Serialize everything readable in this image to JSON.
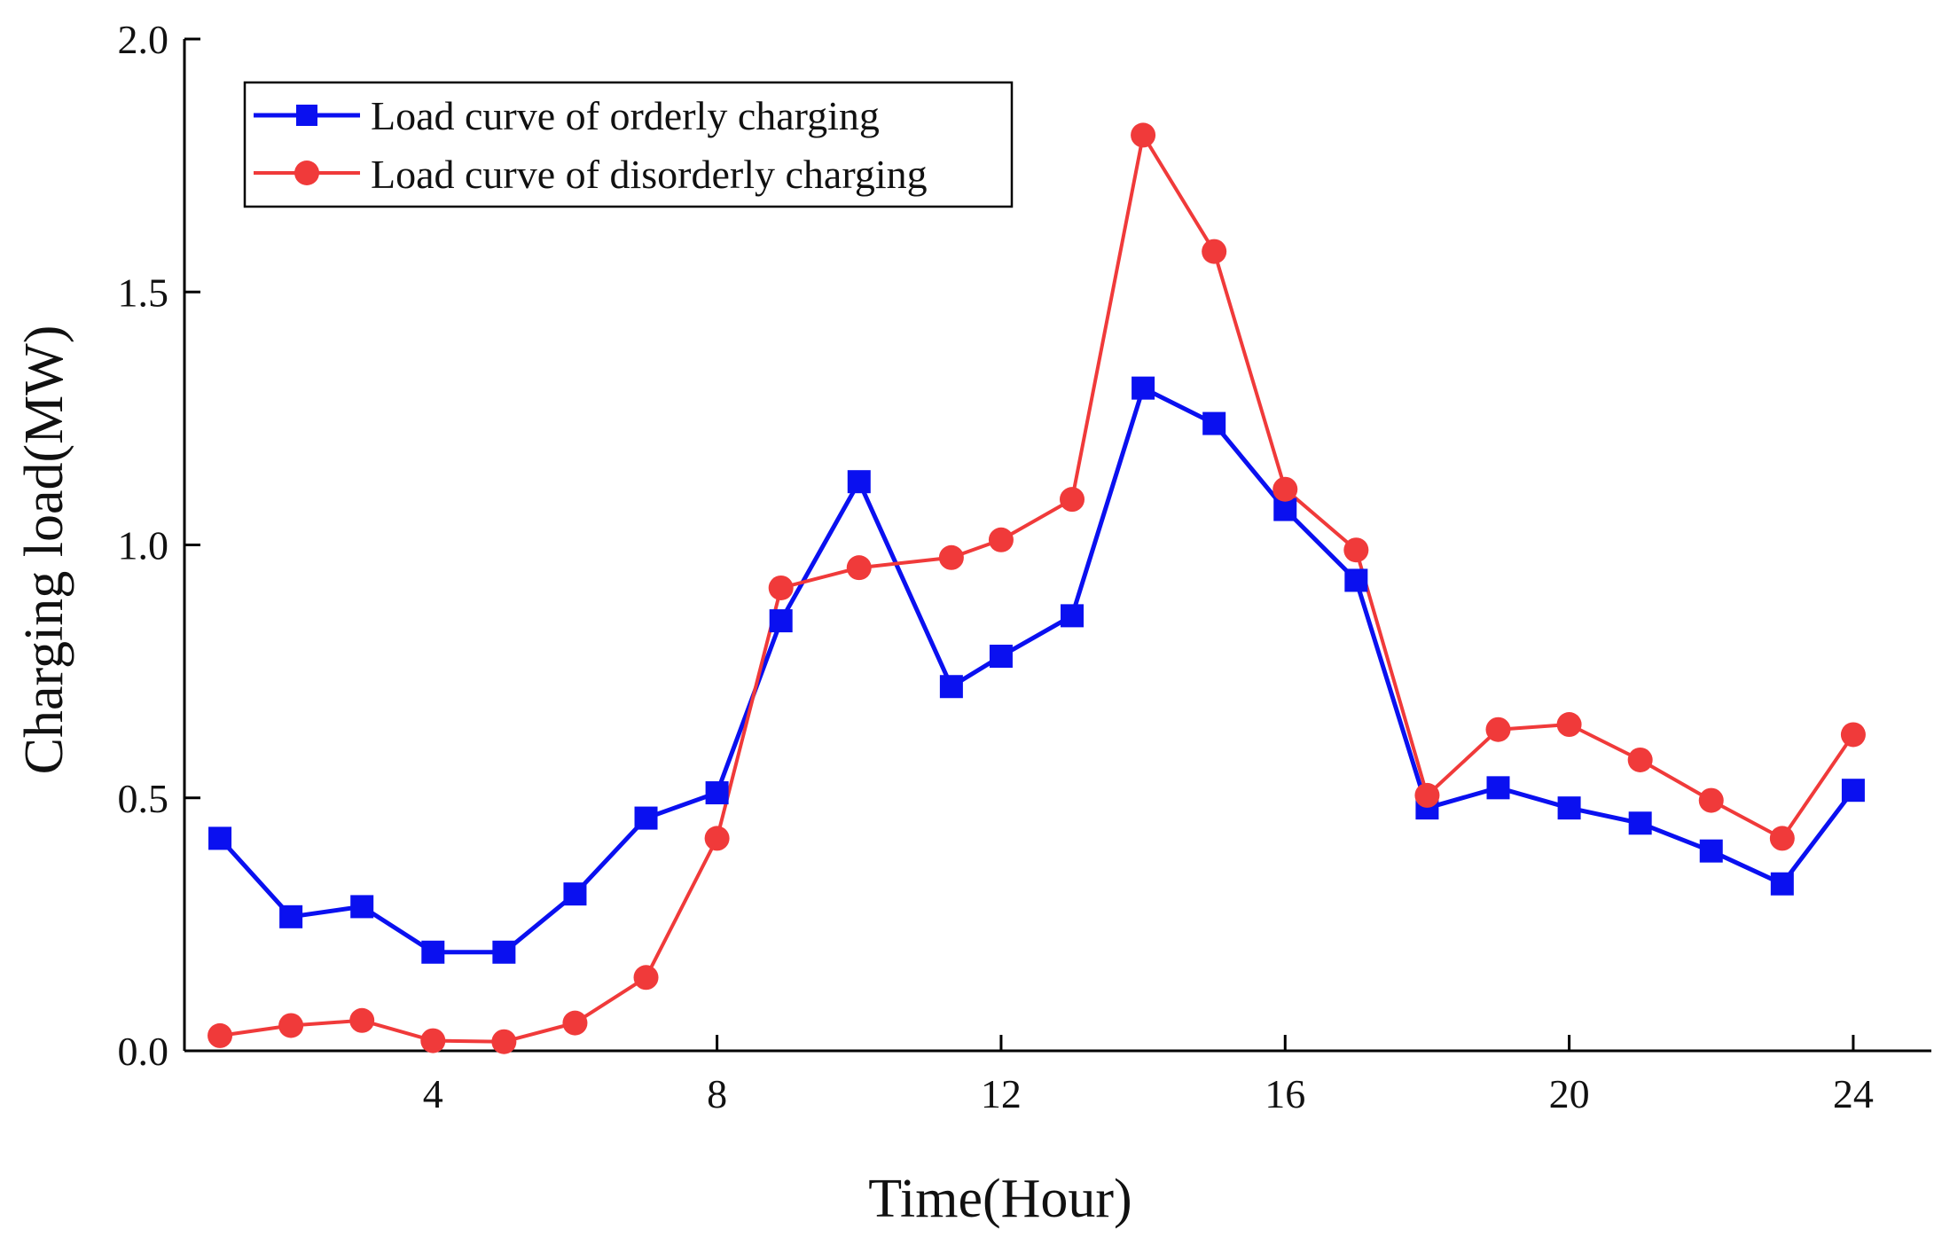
{
  "chart_data": {
    "type": "line",
    "xlabel": "Time(Hour)",
    "ylabel": "Charging load(MW)",
    "xlim": [
      0.5,
      25.1
    ],
    "ylim": [
      0.0,
      2.0
    ],
    "xticks": [
      4,
      8,
      12,
      16,
      20,
      24
    ],
    "xtick_labels": [
      "4",
      "8",
      "12",
      "16",
      "20",
      "24"
    ],
    "yticks": [
      0.0,
      0.5,
      1.0,
      1.5,
      2.0
    ],
    "ytick_labels": [
      "0.0",
      "0.5",
      "1.0",
      "1.5",
      "2.0"
    ],
    "grid": false,
    "legend": "top-left",
    "series": [
      {
        "name": "Load curve of orderly charging",
        "color": "#0a10f0",
        "marker": "square",
        "x": [
          1,
          2,
          3,
          4,
          5,
          6,
          7,
          8,
          8.9,
          10,
          11.3,
          12,
          13,
          14,
          15,
          16,
          17,
          18,
          19,
          20,
          21,
          22,
          23,
          24
        ],
        "y": [
          0.42,
          0.265,
          0.285,
          0.195,
          0.195,
          0.31,
          0.46,
          0.51,
          0.85,
          1.125,
          0.72,
          0.78,
          0.86,
          1.31,
          1.24,
          1.07,
          0.93,
          0.48,
          0.52,
          0.48,
          0.45,
          0.395,
          0.33,
          0.515
        ]
      },
      {
        "name": "Load curve of disorderly charging",
        "color": "#f03a3a",
        "marker": "circle",
        "x": [
          1,
          2,
          3,
          4,
          5,
          6,
          7,
          8,
          8.9,
          10,
          11.3,
          12,
          13,
          14,
          15,
          16,
          17,
          18,
          19,
          20,
          21,
          22,
          23,
          24
        ],
        "y": [
          0.03,
          0.05,
          0.06,
          0.02,
          0.018,
          0.055,
          0.145,
          0.42,
          0.915,
          0.955,
          0.975,
          1.01,
          1.09,
          1.81,
          1.58,
          1.11,
          0.99,
          0.505,
          0.635,
          0.645,
          0.575,
          0.495,
          0.42,
          0.625
        ]
      }
    ]
  }
}
